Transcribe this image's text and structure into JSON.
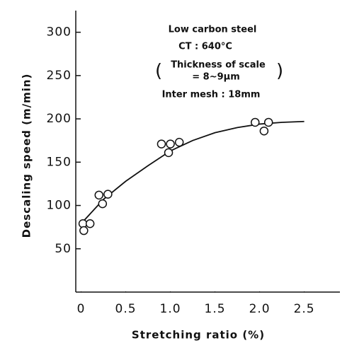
{
  "chart_data": {
    "type": "scatter",
    "annotations": [
      "Low carbon steel",
      "CT : 640°C",
      "Thickness of scale",
      "= 8~9μm",
      "Inter mesh : 18mm"
    ],
    "x_label": "Stretching ratio (%)",
    "y_label": "Descaling speed (m/min)",
    "points": {
      "color": "#111111",
      "x": [
        0.02,
        0.03,
        0.1,
        0.2,
        0.24,
        0.3,
        0.9,
        0.98,
        1.0,
        1.1,
        1.95,
        2.05,
        2.1
      ],
      "values": [
        79,
        71,
        79,
        112,
        102,
        113,
        171,
        161,
        171,
        173,
        196,
        186,
        196
      ]
    },
    "curve": {
      "color": "#111111",
      "x": [
        0,
        0.25,
        0.5,
        0.75,
        1.0,
        1.25,
        1.5,
        1.75,
        2.0,
        2.25,
        2.5
      ],
      "values": [
        79,
        107,
        128,
        146,
        163,
        175,
        184,
        190,
        194,
        196,
        197
      ]
    },
    "xlim": [
      -0.06,
      2.9
    ],
    "ylim": [
      0,
      325
    ],
    "xticks": [
      0,
      0.5,
      {
        "value": 1.0,
        "label": "1.0"
      },
      1.5,
      {
        "value": 2.0,
        "label": "2.0"
      },
      2.5
    ],
    "yticks": [
      50,
      100,
      150,
      200,
      250,
      300
    ]
  }
}
